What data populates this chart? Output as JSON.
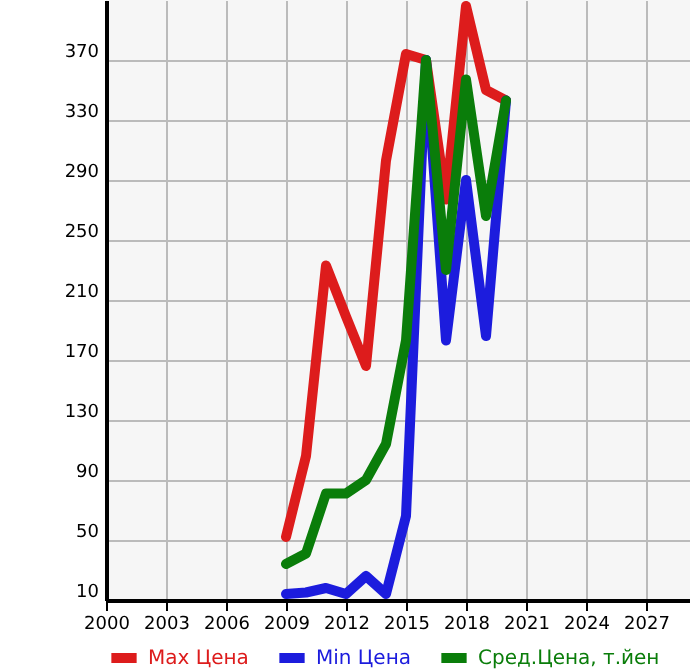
{
  "chart_data": {
    "type": "line",
    "x": [
      2009,
      2010,
      2011,
      2012,
      2013,
      2014,
      2015,
      2016,
      2017,
      2018,
      2019,
      2020
    ],
    "series": [
      {
        "name": "Max Цена",
        "color": "#dd1c1c",
        "values": [
          52,
          106,
          233,
          199,
          166,
          303,
          374,
          370,
          277,
          406,
          350,
          343
        ]
      },
      {
        "name": "Min Цена",
        "color": "#1c1cdd",
        "values": [
          14,
          15,
          18,
          14,
          26,
          14,
          66,
          370,
          183,
          290,
          186,
          343
        ]
      },
      {
        "name": "Сред.Цена, т.йен",
        "color": "#0a7d0a",
        "values": [
          34,
          41,
          81,
          81,
          90,
          114,
          183,
          370,
          230,
          357,
          266,
          343
        ]
      }
    ],
    "xlim": [
      2000,
      2030
    ],
    "xticks": [
      2000,
      2003,
      2006,
      2009,
      2012,
      2015,
      2018,
      2021,
      2024,
      2027
    ],
    "ylim": [
      10,
      410
    ],
    "yticks": [
      10,
      50,
      90,
      130,
      170,
      210,
      250,
      290,
      330,
      370
    ],
    "grid": true,
    "legend": "bottom",
    "marker": "none",
    "line_style": "solid"
  }
}
